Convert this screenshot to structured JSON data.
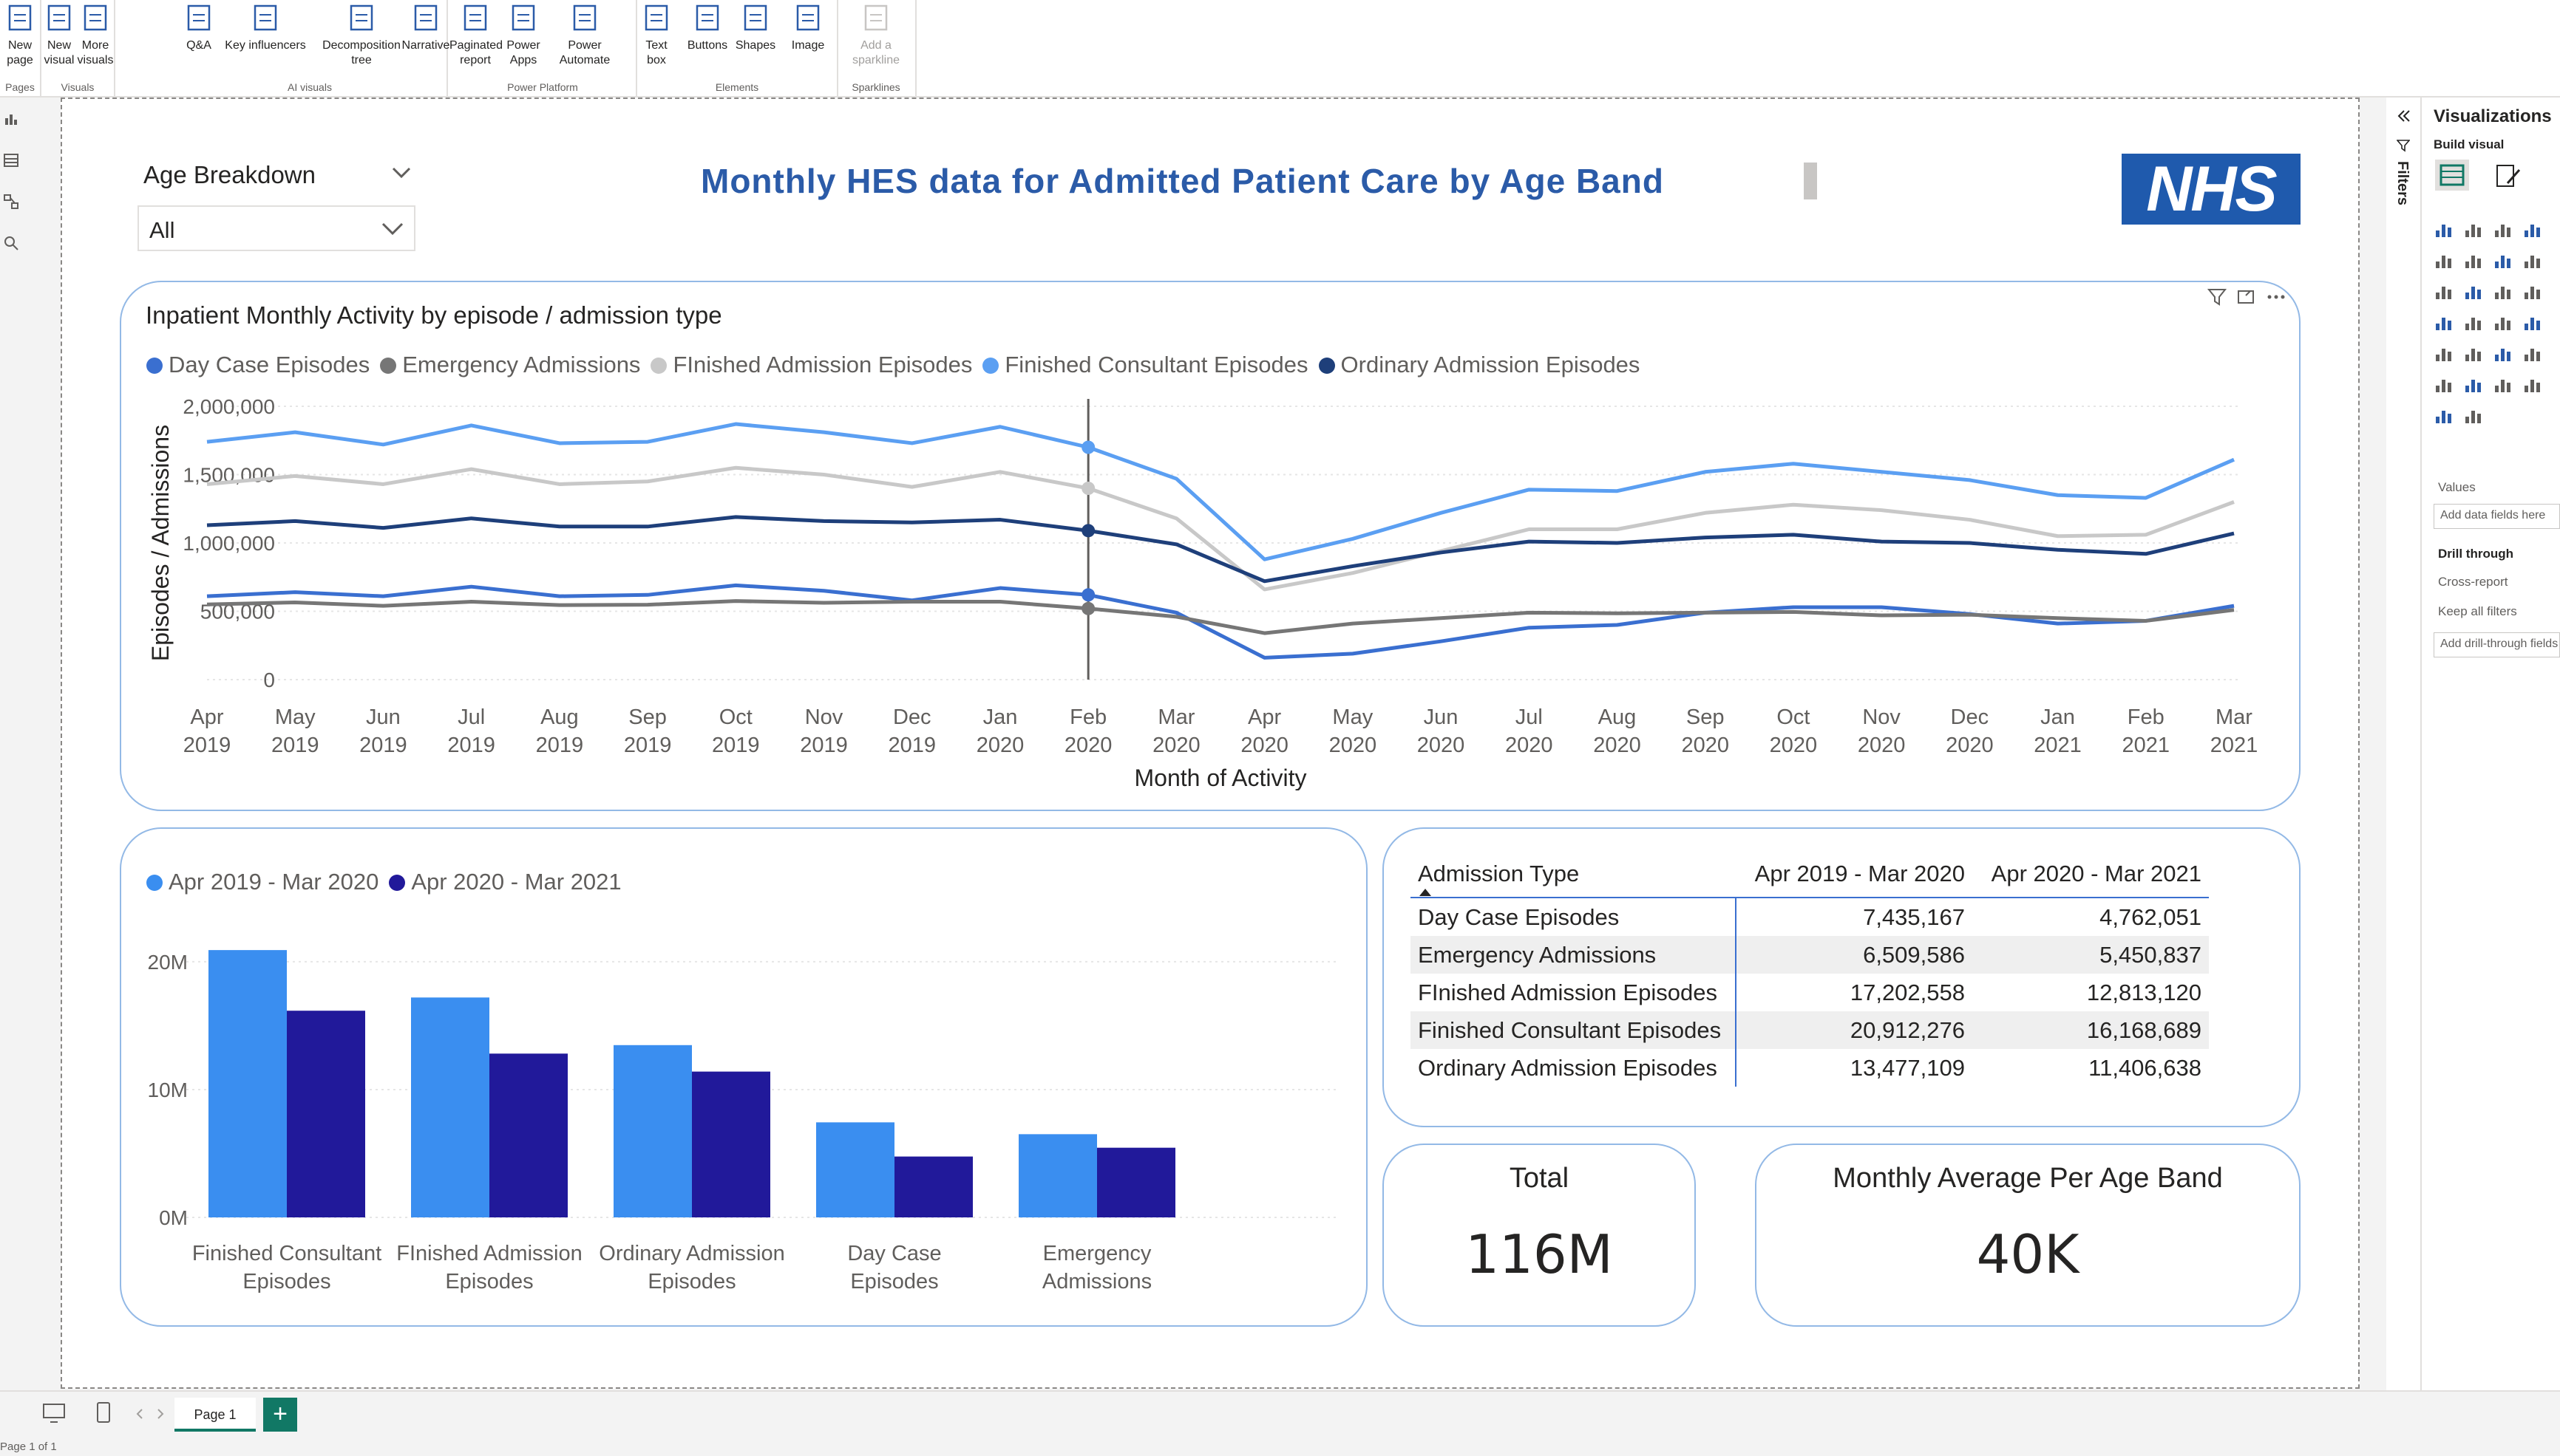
{
  "ribbon": {
    "groups": [
      {
        "name": "Pages",
        "buttons": [
          {
            "label": "New page",
            "icon": "new-page-icon"
          }
        ]
      },
      {
        "name": "Visuals",
        "buttons": [
          {
            "label": "New visual",
            "icon": "new-visual-icon"
          },
          {
            "label": "More visuals",
            "icon": "more-visuals-icon"
          }
        ]
      },
      {
        "name": "AI visuals",
        "buttons": [
          {
            "label": "Q&A",
            "icon": "qa-icon"
          },
          {
            "label": "Key influencers",
            "icon": "key-influencers-icon"
          },
          {
            "label": "Decomposition tree",
            "icon": "decomposition-tree-icon"
          },
          {
            "label": "Narrative",
            "icon": "narrative-icon"
          }
        ]
      },
      {
        "name": "Power Platform",
        "buttons": [
          {
            "label": "Paginated report",
            "icon": "paginated-report-icon"
          },
          {
            "label": "Power Apps",
            "icon": "power-apps-icon"
          },
          {
            "label": "Power Automate",
            "icon": "power-automate-icon"
          }
        ]
      },
      {
        "name": "Elements",
        "buttons": [
          {
            "label": "Text box",
            "icon": "text-box-icon"
          },
          {
            "label": "Buttons",
            "icon": "buttons-icon"
          },
          {
            "label": "Shapes",
            "icon": "shapes-icon"
          },
          {
            "label": "Image",
            "icon": "image-icon"
          }
        ]
      },
      {
        "name": "Sparklines",
        "buttons": [
          {
            "label": "Add a sparkline",
            "icon": "sparkline-icon",
            "disabled": true
          }
        ]
      }
    ]
  },
  "report": {
    "slicer": {
      "title": "Age Breakdown",
      "value": "All"
    },
    "title": "Monthly HES data for Admitted Patient Care by Age Band",
    "logo_text": "NHS"
  },
  "line_visual": {
    "title": "Inpatient Monthly Activity by episode / admission type"
  },
  "matrix": {
    "headers": [
      "Admission Type",
      "Apr 2019 - Mar 2020",
      "Apr 2020 - Mar 2021"
    ],
    "rows": [
      [
        "Day Case Episodes",
        "7,435,167",
        "4,762,051"
      ],
      [
        "Emergency Admissions",
        "6,509,586",
        "5,450,837"
      ],
      [
        "FInished Admission Episodes",
        "17,202,558",
        "12,813,120"
      ],
      [
        "Finished Consultant Episodes",
        "20,912,276",
        "16,168,689"
      ],
      [
        "Ordinary Admission Episodes",
        "13,477,109",
        "11,406,638"
      ]
    ]
  },
  "kpis": [
    {
      "label": "Total",
      "value": "116M"
    },
    {
      "label": "Monthly Average Per Age Band",
      "value": "40K"
    }
  ],
  "right_pane": {
    "filters_label": "Filters",
    "title": "Visualizations",
    "build_visual": "Build visual",
    "values_label": "Values",
    "values_field": "Add data fields here",
    "drill_through": "Drill through",
    "cross_report": "Cross-report",
    "keep_all_filters": "Keep all filters",
    "drill_field": "Add drill-through fields here"
  },
  "footer": {
    "page_tab": "Page 1",
    "status": "Page 1 of 1"
  },
  "colors": {
    "accent": "#117865",
    "title_blue": "#2b5ba8",
    "nhs_blue": "#1f5aad",
    "card_border": "#93b9e6"
  },
  "chart_data": [
    {
      "type": "line",
      "title": "Inpatient Monthly Activity by episode / admission type",
      "xlabel": "Month of Activity",
      "ylabel": "Episodes / Admissions",
      "ylim": [
        0,
        2000000
      ],
      "yticks": [
        "0",
        "500,000",
        "1,000,000",
        "1,500,000",
        "2,000,000"
      ],
      "x": [
        "Apr 2019",
        "May 2019",
        "Jun 2019",
        "Jul 2019",
        "Aug 2019",
        "Sep 2019",
        "Oct 2019",
        "Nov 2019",
        "Dec 2019",
        "Jan 2020",
        "Feb 2020",
        "Mar 2020",
        "Apr 2020",
        "May 2020",
        "Jun 2020",
        "Jul 2020",
        "Aug 2020",
        "Sep 2020",
        "Oct 2020",
        "Nov 2020",
        "Dec 2020",
        "Jan 2021",
        "Feb 2021",
        "Mar 2021"
      ],
      "legend_position": "top-left",
      "grid": true,
      "highlighted_x": "Feb 2020",
      "series": [
        {
          "name": "Day Case Episodes",
          "color": "#3a6fd0",
          "values": [
            610000,
            640000,
            610000,
            680000,
            610000,
            620000,
            690000,
            650000,
            580000,
            670000,
            620000,
            490000,
            160000,
            190000,
            280000,
            380000,
            400000,
            490000,
            530000,
            530000,
            480000,
            410000,
            430000,
            540000
          ]
        },
        {
          "name": "Emergency Admissions",
          "color": "#767676",
          "values": [
            550000,
            565000,
            540000,
            570000,
            545000,
            548000,
            575000,
            562000,
            570000,
            570000,
            520000,
            460000,
            340000,
            410000,
            450000,
            490000,
            485000,
            490000,
            495000,
            470000,
            475000,
            450000,
            430000,
            510000
          ]
        },
        {
          "name": "FInished Admission Episodes",
          "color": "#c8c8c8",
          "values": [
            1430000,
            1490000,
            1430000,
            1540000,
            1430000,
            1450000,
            1550000,
            1500000,
            1410000,
            1520000,
            1400000,
            1180000,
            660000,
            780000,
            940000,
            1100000,
            1100000,
            1220000,
            1280000,
            1240000,
            1170000,
            1050000,
            1060000,
            1300000
          ]
        },
        {
          "name": "Finished Consultant Episodes",
          "color": "#5b9ff2",
          "values": [
            1740000,
            1810000,
            1720000,
            1860000,
            1730000,
            1740000,
            1870000,
            1810000,
            1730000,
            1850000,
            1700000,
            1470000,
            880000,
            1030000,
            1220000,
            1390000,
            1380000,
            1520000,
            1580000,
            1520000,
            1460000,
            1350000,
            1330000,
            1610000
          ]
        },
        {
          "name": "Ordinary Admission Episodes",
          "color": "#1e3f7a",
          "values": [
            1130000,
            1160000,
            1110000,
            1180000,
            1120000,
            1120000,
            1190000,
            1160000,
            1150000,
            1170000,
            1090000,
            990000,
            720000,
            830000,
            930000,
            1010000,
            1000000,
            1040000,
            1060000,
            1010000,
            1000000,
            950000,
            920000,
            1070000
          ]
        }
      ]
    },
    {
      "type": "bar",
      "title": "",
      "xlabel": "",
      "ylabel": "",
      "ylim": [
        0,
        23000000
      ],
      "yticks": [
        "0M",
        "10M",
        "20M"
      ],
      "legend_position": "top-left",
      "grid": true,
      "categories": [
        "Finished Consultant Episodes",
        "FInished Admission Episodes",
        "Ordinary Admission Episodes",
        "Day Case Episodes",
        "Emergency Admissions"
      ],
      "series": [
        {
          "name": "Apr 2019 - Mar 2020",
          "color": "#3a8ef0",
          "values": [
            20912276,
            17202558,
            13477109,
            7435167,
            6509586
          ]
        },
        {
          "name": "Apr 2020 - Mar 2021",
          "color": "#21199a",
          "values": [
            16168689,
            12813120,
            11406638,
            4762051,
            5450837
          ]
        }
      ]
    }
  ]
}
